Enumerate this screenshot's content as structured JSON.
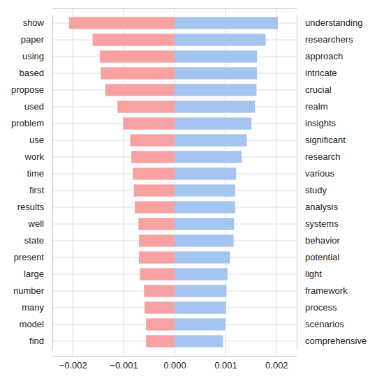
{
  "chart_data": {
    "type": "bar",
    "orientation": "horizontal",
    "grid": true,
    "xlim": [
      -0.0024,
      0.0024
    ],
    "xticks": [
      {
        "value": -0.002,
        "label": "−0.002"
      },
      {
        "value": -0.001,
        "label": "−0.001"
      },
      {
        "value": 0,
        "label": "0.000"
      },
      0.001,
      0.002
    ],
    "series": [
      {
        "color": "#f7a1a1",
        "categories": [
          "show",
          "paper",
          "using",
          "based",
          "propose",
          "used",
          "problem",
          "use",
          "work",
          "time",
          "first",
          "results",
          "well",
          "state",
          "present",
          "large",
          "number",
          "many",
          "model",
          "find"
        ],
        "values": [
          -0.00207,
          -0.00161,
          -0.00147,
          -0.00145,
          -0.00136,
          -0.00112,
          -0.00101,
          -0.00087,
          -0.00085,
          -0.00082,
          -0.0008,
          -0.00078,
          -0.00071,
          -0.0007,
          -0.0007,
          -0.00068,
          -0.0006,
          -0.00059,
          -0.00056,
          -0.00056
        ]
      },
      {
        "color": "#a3c5f0",
        "categories": [
          "understanding",
          "researchers",
          "approach",
          "intricate",
          "crucial",
          "realm",
          "insights",
          "significant",
          "research",
          "various",
          "study",
          "analysis",
          "systems",
          "behavior",
          "potential",
          "light",
          "framework",
          "process",
          "scenarios",
          "comprehensive"
        ],
        "values": [
          0.00203,
          0.00179,
          0.00162,
          0.00162,
          0.00161,
          0.00158,
          0.00151,
          0.00142,
          0.00132,
          0.00121,
          0.00119,
          0.00119,
          0.00117,
          0.00116,
          0.00109,
          0.00104,
          0.00102,
          0.00101,
          0.001,
          0.00095
        ]
      }
    ]
  }
}
